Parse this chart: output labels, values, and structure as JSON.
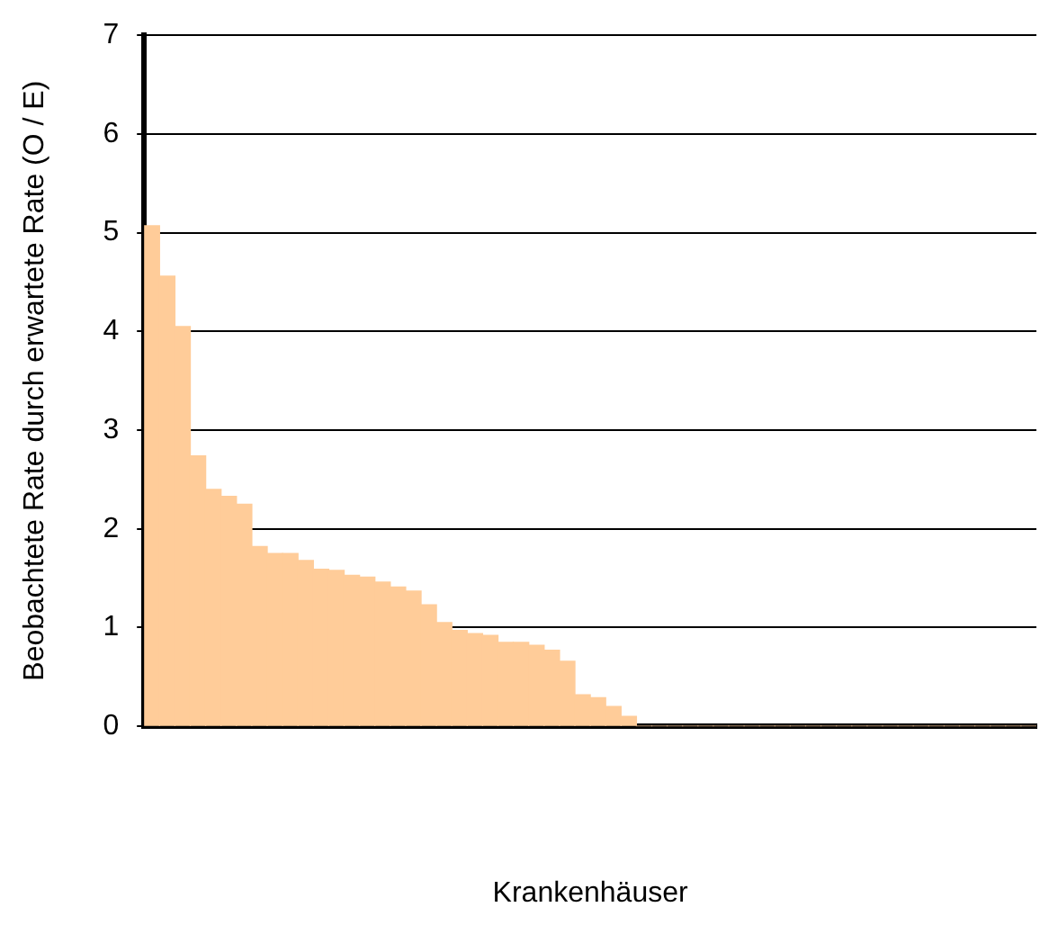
{
  "chart_data": {
    "type": "bar",
    "xlabel": "Krankenhäuser",
    "ylabel": "Beobachtete Rate durch erwartete Rate (O / E)",
    "categories": [
      null,
      null,
      null,
      null,
      null,
      null,
      null,
      null,
      null,
      null,
      null,
      null,
      null,
      null,
      null,
      null,
      null,
      null,
      null,
      null,
      null,
      null,
      null,
      null,
      null,
      null,
      null,
      null,
      null,
      null,
      null,
      null,
      null,
      null,
      null,
      null,
      null,
      null,
      null,
      null,
      null,
      null,
      null,
      null,
      null,
      null,
      null,
      null,
      null,
      null,
      null,
      null,
      null,
      null,
      null,
      null,
      null,
      null
    ],
    "values": [
      5.07,
      4.56,
      4.05,
      2.74,
      2.4,
      2.33,
      2.25,
      1.82,
      1.75,
      1.75,
      1.68,
      1.59,
      1.58,
      1.53,
      1.51,
      1.46,
      1.41,
      1.37,
      1.23,
      1.05,
      0.97,
      0.94,
      0.92,
      0.85,
      0.85,
      0.82,
      0.77,
      0.66,
      0.32,
      0.29,
      0.2,
      0.1,
      0,
      0,
      0,
      0,
      0,
      0,
      0,
      0,
      0,
      0,
      0,
      0,
      0,
      0,
      0,
      0,
      0,
      0,
      0,
      0,
      0,
      0,
      0,
      0,
      0,
      0
    ],
    "color": "#ffcc99",
    "ylim": [
      0,
      7
    ],
    "yticks": [
      0,
      1,
      2,
      3,
      4,
      5,
      6,
      7
    ],
    "grid": "y",
    "legend": false
  }
}
